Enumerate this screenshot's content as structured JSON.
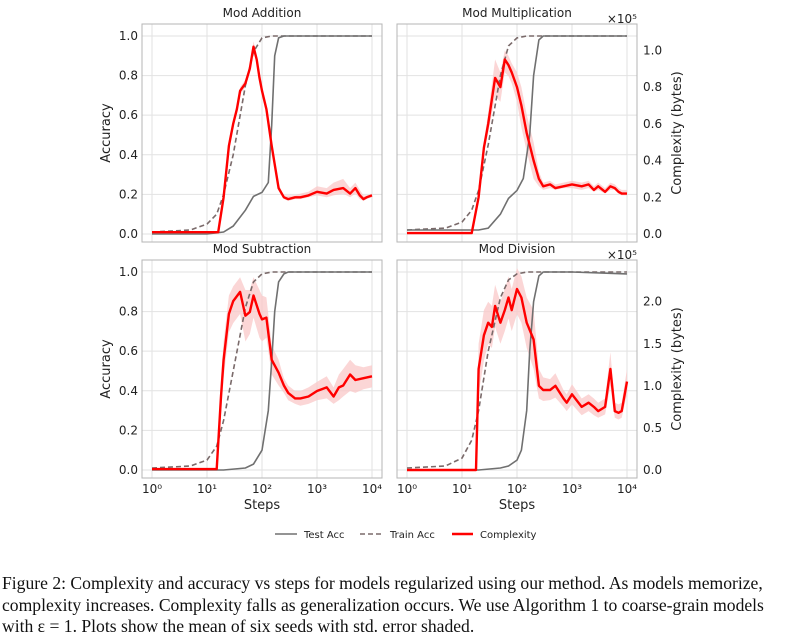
{
  "figure": {
    "caption": "Figure 2: Complexity and accuracy vs steps for models regularized using our method. As models memorize, complexity increases. Complexity falls as generalization occurs. We use Algorithm 1 to coarse-grain models with ε = 1. Plots show the mean of six seeds with std. error shaded."
  },
  "legend": {
    "test_acc": "Test Acc",
    "train_acc": "Train Acc",
    "complexity": "Complexity"
  },
  "colors": {
    "test": "#707070",
    "train": "#7a6a6a",
    "complexity": "#ff0000",
    "band": "#f9c8c8"
  },
  "chart_data": [
    {
      "type": "line",
      "title": "Mod Addition",
      "xlabel": "",
      "ylabel": "Accuracy",
      "y2label": "",
      "x_scale": "log",
      "xlim": [
        1,
        10000
      ],
      "ylim": [
        0,
        1.02
      ],
      "x_ticks": [
        1,
        10,
        100,
        1000,
        10000
      ],
      "y_ticks": [
        "0.0",
        "0.2",
        "0.4",
        "0.6",
        "0.8",
        "1.0"
      ],
      "y2_ticks": [],
      "y2_multiplier": "",
      "y2lim": [
        0,
        1.1
      ],
      "series": [
        {
          "name": "Test Acc",
          "axis": "left",
          "x": [
            1,
            10,
            20,
            30,
            50,
            70,
            100,
            130,
            150,
            170,
            200,
            250,
            300,
            1000,
            10000
          ],
          "y": [
            0,
            0,
            0.01,
            0.04,
            0.12,
            0.19,
            0.21,
            0.26,
            0.55,
            0.9,
            0.99,
            1.0,
            1.0,
            1.0,
            1.0
          ]
        },
        {
          "name": "Train Acc",
          "axis": "left",
          "x": [
            1,
            5,
            10,
            15,
            20,
            30,
            50,
            70,
            100,
            150,
            200,
            300,
            1000,
            10000
          ],
          "y": [
            0.01,
            0.02,
            0.05,
            0.1,
            0.2,
            0.4,
            0.75,
            0.92,
            0.99,
            1.0,
            1.0,
            1.0,
            1.0,
            1.0
          ]
        },
        {
          "name": "Complexity",
          "axis": "right",
          "x": [
            1,
            8,
            16,
            20,
            25,
            30,
            35,
            40,
            50,
            60,
            70,
            80,
            90,
            100,
            120,
            150,
            200,
            250,
            300,
            400,
            500,
            700,
            1000,
            1500,
            2000,
            3000,
            4000,
            5000,
            6000,
            7000,
            8000,
            10000
          ],
          "y": [
            0.01,
            0.01,
            0.01,
            0.2,
            0.48,
            0.6,
            0.68,
            0.78,
            0.82,
            0.9,
            1.02,
            0.95,
            0.85,
            0.78,
            0.68,
            0.48,
            0.25,
            0.2,
            0.19,
            0.2,
            0.2,
            0.21,
            0.23,
            0.22,
            0.24,
            0.25,
            0.22,
            0.25,
            0.21,
            0.19,
            0.2,
            0.21
          ],
          "lower": [
            0.01,
            0.01,
            0.01,
            0.18,
            0.45,
            0.58,
            0.66,
            0.76,
            0.8,
            0.88,
            0.99,
            0.93,
            0.83,
            0.76,
            0.66,
            0.46,
            0.24,
            0.19,
            0.18,
            0.19,
            0.19,
            0.2,
            0.21,
            0.2,
            0.21,
            0.22,
            0.2,
            0.22,
            0.19,
            0.18,
            0.19,
            0.2
          ],
          "upper": [
            0.01,
            0.01,
            0.01,
            0.22,
            0.51,
            0.62,
            0.7,
            0.8,
            0.84,
            0.92,
            1.05,
            0.97,
            0.87,
            0.8,
            0.7,
            0.5,
            0.27,
            0.21,
            0.21,
            0.21,
            0.22,
            0.23,
            0.26,
            0.25,
            0.28,
            0.3,
            0.25,
            0.28,
            0.24,
            0.21,
            0.21,
            0.22
          ]
        }
      ]
    },
    {
      "type": "line",
      "title": "Mod Multiplication",
      "xlabel": "",
      "ylabel": "",
      "y2label": "Complexity (bytes)",
      "x_scale": "log",
      "xlim": [
        1,
        10000
      ],
      "ylim": [
        0,
        1.02
      ],
      "x_ticks": [
        1,
        10,
        100,
        1000,
        10000
      ],
      "y_ticks": [],
      "y2_ticks": [
        "0.0",
        "0.2",
        "0.4",
        "0.6",
        "0.8",
        "1.0"
      ],
      "y2_multiplier": "×10⁵",
      "y2lim": [
        0,
        1.1
      ],
      "series": [
        {
          "name": "Test Acc",
          "axis": "left",
          "x": [
            1,
            10,
            20,
            30,
            50,
            70,
            100,
            130,
            170,
            200,
            250,
            300,
            400,
            1000,
            10000
          ],
          "y": [
            0.02,
            0.02,
            0.02,
            0.03,
            0.1,
            0.18,
            0.22,
            0.28,
            0.5,
            0.8,
            0.98,
            1.0,
            1.0,
            1.0,
            1.0
          ]
        },
        {
          "name": "Train Acc",
          "axis": "left",
          "x": [
            1,
            5,
            10,
            15,
            20,
            30,
            50,
            70,
            100,
            150,
            200,
            300,
            1000,
            10000
          ],
          "y": [
            0.02,
            0.03,
            0.06,
            0.12,
            0.22,
            0.45,
            0.8,
            0.95,
            0.99,
            1.0,
            1.0,
            1.0,
            1.0,
            1.0
          ]
        },
        {
          "name": "Complexity",
          "axis": "right",
          "x": [
            1,
            8,
            15,
            20,
            25,
            30,
            40,
            50,
            60,
            70,
            80,
            100,
            120,
            150,
            200,
            250,
            300,
            400,
            500,
            700,
            1000,
            1500,
            2000,
            2500,
            3000,
            4000,
            5000,
            6000,
            7000,
            8000,
            10000
          ],
          "y": [
            0.005,
            0.005,
            0.005,
            0.2,
            0.47,
            0.6,
            0.85,
            0.8,
            0.95,
            0.92,
            0.88,
            0.8,
            0.7,
            0.55,
            0.4,
            0.3,
            0.26,
            0.27,
            0.25,
            0.26,
            0.27,
            0.26,
            0.27,
            0.24,
            0.26,
            0.23,
            0.26,
            0.25,
            0.23,
            0.22,
            0.22
          ],
          "lower": [
            0.005,
            0.005,
            0.005,
            0.18,
            0.44,
            0.55,
            0.75,
            0.72,
            0.88,
            0.86,
            0.82,
            0.72,
            0.58,
            0.45,
            0.3,
            0.26,
            0.24,
            0.25,
            0.24,
            0.25,
            0.25,
            0.24,
            0.25,
            0.23,
            0.24,
            0.22,
            0.24,
            0.24,
            0.22,
            0.21,
            0.21
          ],
          "upper": [
            0.005,
            0.005,
            0.005,
            0.22,
            0.5,
            0.66,
            0.95,
            0.88,
            1.0,
            0.97,
            0.93,
            0.88,
            0.8,
            0.65,
            0.5,
            0.34,
            0.28,
            0.29,
            0.27,
            0.28,
            0.29,
            0.28,
            0.29,
            0.26,
            0.28,
            0.25,
            0.28,
            0.27,
            0.25,
            0.24,
            0.24
          ]
        }
      ]
    },
    {
      "type": "line",
      "title": "Mod Subtraction",
      "xlabel": "Steps",
      "ylabel": "Accuracy",
      "y2label": "",
      "x_scale": "log",
      "xlim": [
        1,
        10000
      ],
      "ylim": [
        0,
        1.02
      ],
      "x_ticks": [
        1,
        10,
        100,
        1000,
        10000
      ],
      "y_ticks": [
        "0.0",
        "0.2",
        "0.4",
        "0.6",
        "0.8",
        "1.0"
      ],
      "y2_ticks": [],
      "y2_multiplier": "",
      "y2lim": [
        0,
        1.1
      ],
      "series": [
        {
          "name": "Test Acc",
          "axis": "left",
          "x": [
            1,
            20,
            50,
            70,
            100,
            130,
            150,
            170,
            200,
            250,
            300,
            500,
            1000,
            10000
          ],
          "y": [
            0,
            0,
            0.01,
            0.03,
            0.1,
            0.3,
            0.55,
            0.8,
            0.95,
            0.99,
            1.0,
            1.0,
            1.0,
            1.0
          ]
        },
        {
          "name": "Train Acc",
          "axis": "left",
          "x": [
            1,
            5,
            10,
            15,
            20,
            30,
            50,
            70,
            100,
            150,
            200,
            300,
            1000,
            10000
          ],
          "y": [
            0.01,
            0.02,
            0.05,
            0.12,
            0.25,
            0.5,
            0.82,
            0.95,
            0.99,
            1.0,
            1.0,
            1.0,
            1.0,
            1.0
          ]
        },
        {
          "name": "Complexity",
          "axis": "right",
          "x": [
            1,
            10,
            15,
            18,
            20,
            25,
            30,
            40,
            50,
            60,
            70,
            90,
            100,
            120,
            150,
            200,
            250,
            300,
            400,
            500,
            700,
            1000,
            1500,
            2000,
            2500,
            3000,
            4000,
            5000,
            7000,
            10000
          ],
          "y": [
            0.005,
            0.005,
            0.005,
            0.4,
            0.6,
            0.85,
            0.92,
            0.97,
            0.84,
            0.86,
            0.95,
            0.85,
            0.82,
            0.83,
            0.6,
            0.53,
            0.46,
            0.42,
            0.39,
            0.39,
            0.4,
            0.43,
            0.45,
            0.4,
            0.45,
            0.46,
            0.52,
            0.49,
            0.5,
            0.51
          ],
          "lower": [
            0.005,
            0.005,
            0.005,
            0.3,
            0.5,
            0.75,
            0.8,
            0.85,
            0.7,
            0.74,
            0.83,
            0.72,
            0.7,
            0.72,
            0.52,
            0.46,
            0.42,
            0.38,
            0.36,
            0.35,
            0.36,
            0.38,
            0.39,
            0.36,
            0.38,
            0.4,
            0.43,
            0.42,
            0.44,
            0.45
          ],
          "upper": [
            0.005,
            0.005,
            0.005,
            0.5,
            0.7,
            0.95,
            1.0,
            1.05,
            0.98,
            0.98,
            1.05,
            0.98,
            0.95,
            0.94,
            0.68,
            0.6,
            0.5,
            0.46,
            0.43,
            0.43,
            0.45,
            0.48,
            0.51,
            0.45,
            0.52,
            0.55,
            0.6,
            0.57,
            0.56,
            0.57
          ]
        }
      ]
    },
    {
      "type": "line",
      "title": "Mod Division",
      "xlabel": "Steps",
      "ylabel": "",
      "y2label": "Complexity (bytes)",
      "x_scale": "log",
      "xlim": [
        1,
        10000
      ],
      "ylim": [
        0,
        1.02
      ],
      "x_ticks": [
        1,
        10,
        100,
        1000,
        10000
      ],
      "y_ticks": [],
      "y2_ticks": [
        "0.0",
        "0.5",
        "1.0",
        "1.5",
        "2.0"
      ],
      "y2_multiplier": "×10⁵",
      "y2lim": [
        0,
        2.4
      ],
      "series": [
        {
          "name": "Test Acc",
          "axis": "left",
          "x": [
            1,
            20,
            50,
            70,
            100,
            120,
            150,
            170,
            200,
            250,
            300,
            500,
            1000,
            10000
          ],
          "y": [
            0,
            0,
            0.01,
            0.02,
            0.05,
            0.1,
            0.3,
            0.6,
            0.85,
            0.98,
            1.0,
            1.0,
            1.0,
            0.99
          ]
        },
        {
          "name": "Train Acc",
          "axis": "left",
          "x": [
            1,
            5,
            10,
            15,
            20,
            30,
            50,
            70,
            100,
            150,
            200,
            300,
            1000,
            10000
          ],
          "y": [
            0.01,
            0.02,
            0.06,
            0.15,
            0.3,
            0.6,
            0.87,
            0.96,
            0.99,
            1.0,
            1.0,
            1.0,
            1.0,
            1.0
          ]
        },
        {
          "name": "Complexity",
          "axis": "right",
          "x": [
            1,
            10,
            18,
            20,
            25,
            30,
            35,
            40,
            50,
            60,
            70,
            80,
            100,
            120,
            150,
            200,
            250,
            300,
            400,
            500,
            700,
            800,
            1000,
            1500,
            2000,
            2500,
            3000,
            4000,
            5000,
            6000,
            7000,
            8000,
            10000
          ],
          "y": [
            0.0,
            0.0,
            0.0,
            1.2,
            1.6,
            1.75,
            1.7,
            1.95,
            1.75,
            1.9,
            2.05,
            1.9,
            2.15,
            2.05,
            1.75,
            1.55,
            1.0,
            0.95,
            0.95,
            1.0,
            0.85,
            0.8,
            0.9,
            0.75,
            0.8,
            0.75,
            0.7,
            0.75,
            1.2,
            0.7,
            0.68,
            0.7,
            1.05
          ],
          "lower": [
            0.0,
            0.0,
            0.0,
            0.9,
            1.3,
            1.5,
            1.45,
            1.7,
            1.5,
            1.65,
            1.8,
            1.65,
            1.85,
            1.75,
            1.45,
            1.2,
            0.85,
            0.82,
            0.83,
            0.86,
            0.75,
            0.7,
            0.78,
            0.65,
            0.7,
            0.65,
            0.62,
            0.66,
            1.0,
            0.62,
            0.6,
            0.62,
            0.9
          ],
          "upper": [
            0.0,
            0.0,
            0.0,
            1.5,
            1.9,
            2.0,
            1.95,
            2.2,
            2.0,
            2.15,
            2.3,
            2.15,
            2.4,
            2.3,
            2.05,
            1.9,
            1.2,
            1.1,
            1.08,
            1.15,
            0.95,
            0.9,
            1.02,
            0.85,
            0.9,
            0.85,
            0.8,
            0.85,
            1.4,
            0.8,
            0.78,
            0.8,
            1.2
          ]
        }
      ]
    }
  ]
}
